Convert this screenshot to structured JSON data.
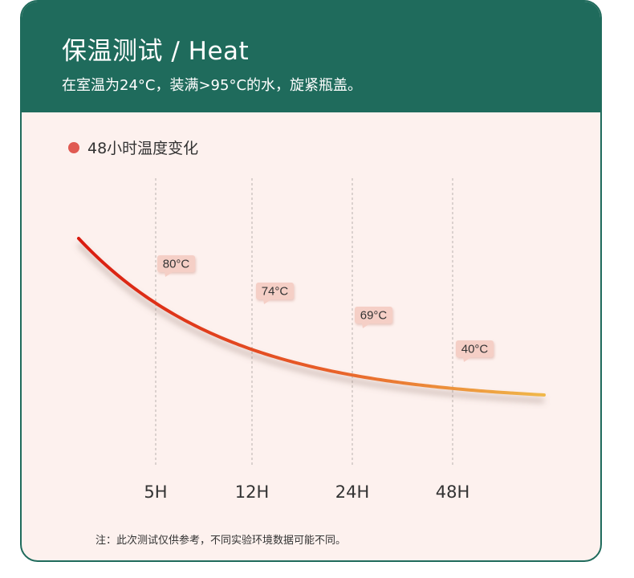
{
  "header": {
    "title": "保温测试 / Heat",
    "subtitle": "在室温为24°C，装满>95°C的水，旋紧瓶盖。"
  },
  "legend": {
    "label": "48小时温度变化"
  },
  "note": "注：此次测试仅供参考，不同实验环境数据可能不同。",
  "colors": {
    "header_bg": "#1f6b5c",
    "card_bg": "#fdf1ee",
    "legend_dot": "#e05a52",
    "curve_start": "#d91b10",
    "curve_end": "#f0b84a",
    "label_bg": "#f5cfc6"
  },
  "chart_data": {
    "type": "line",
    "x": [
      "5H",
      "12H",
      "24H",
      "48H"
    ],
    "series": [
      {
        "values": [
          80,
          74,
          69,
          40
        ]
      }
    ],
    "data_labels": [
      "80°C",
      "74°C",
      "69°C",
      "40°C"
    ],
    "xlabel": "",
    "ylabel": "",
    "grid": "vertical-dashed",
    "legend_placement": "top-left"
  }
}
